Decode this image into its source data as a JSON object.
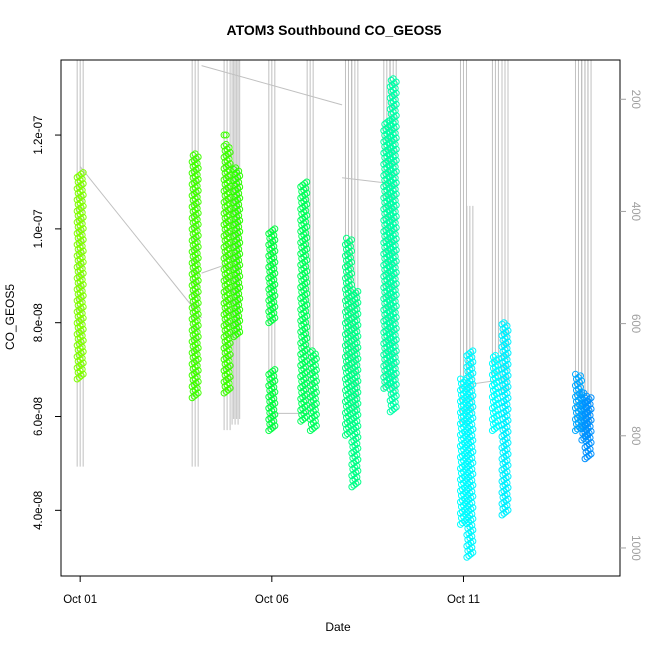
{
  "chart_data": {
    "type": "scatter",
    "title": "ATOM3 Southbound CO_GEOS5",
    "xlabel": "Date",
    "ylabel": "CO_GEOS5",
    "x_ticks": [
      {
        "date": "2017-10-01",
        "label": "Oct 01"
      },
      {
        "date": "2017-10-06",
        "label": "Oct 06"
      },
      {
        "date": "2017-10-11",
        "label": "Oct 11"
      }
    ],
    "xlim": [
      "2017-09-30T12:00",
      "2017-10-15T02:00"
    ],
    "ylim": [
      2.6e-08,
      1.36e-07
    ],
    "y_ticks": [
      {
        "value": 4e-08,
        "label": "4.0e-08"
      },
      {
        "value": 6e-08,
        "label": "6.0e-08"
      },
      {
        "value": 8e-08,
        "label": "8.0e-08"
      },
      {
        "value": 1e-07,
        "label": "1.0e-07"
      },
      {
        "value": 1.2e-07,
        "label": "1.2e-07"
      }
    ],
    "secondary_axis": {
      "side": "right",
      "reversed": true,
      "lim": [
        130,
        1050
      ],
      "color": "#a0a0a0",
      "ticks": [
        {
          "value": 200,
          "label": "200"
        },
        {
          "value": 400,
          "label": "400"
        },
        {
          "value": 600,
          "label": "600"
        },
        {
          "value": 800,
          "label": "800"
        },
        {
          "value": 1000,
          "label": "1000"
        }
      ]
    },
    "grid": false,
    "legend": "none",
    "series": [
      {
        "color": "#80ff00",
        "x": "2017-10-01T00:00",
        "segments": [
          [
            6.8e-08,
            1.12e-07
          ]
        ]
      },
      {
        "color": "#40ff00",
        "x": "2017-10-04T00:00",
        "segments": [
          [
            6.4e-08,
            1.16e-07
          ]
        ]
      },
      {
        "color": "#3cff00",
        "x": "2017-10-04T20:00",
        "segments": [
          [
            6.5e-08,
            1.18e-07
          ],
          [
            1.2e-07,
            1.2e-07
          ]
        ]
      },
      {
        "color": "#2cff00",
        "x": "2017-10-05T02:00",
        "segments": [
          [
            7.7e-08,
            1.13e-07
          ]
        ]
      },
      {
        "color": "#00ff40",
        "x": "2017-10-06T00:00",
        "segments": [
          [
            5.7e-08,
            7e-08
          ],
          [
            8e-08,
            1e-07
          ]
        ]
      },
      {
        "color": "#00ff5a",
        "x": "2017-10-06T20:00",
        "segments": [
          [
            5.9e-08,
            1.1e-07
          ]
        ]
      },
      {
        "color": "#00ff60",
        "x": "2017-10-07T02:00",
        "segments": [
          [
            5.7e-08,
            7.4e-08
          ]
        ]
      },
      {
        "color": "#00ff80",
        "x": "2017-10-08T00:00",
        "segments": [
          [
            5.6e-08,
            9.8e-08
          ]
        ]
      },
      {
        "color": "#00ff88",
        "x": "2017-10-08T04:00",
        "segments": [
          [
            4.5e-08,
            8.7e-08
          ]
        ]
      },
      {
        "color": "#00ffa0",
        "x": "2017-10-09T00:00",
        "segments": [
          [
            6.6e-08,
            1.23e-07
          ]
        ]
      },
      {
        "color": "#00ffa8",
        "x": "2017-10-09T04:00",
        "segments": [
          [
            6.1e-08,
            1.32e-07
          ]
        ]
      },
      {
        "color": "#00ffff",
        "x": "2017-10-11T00:00",
        "segments": [
          [
            3.7e-08,
            6.8e-08
          ]
        ]
      },
      {
        "color": "#00f8ff",
        "x": "2017-10-11T04:00",
        "segments": [
          [
            3e-08,
            7.4e-08
          ]
        ]
      },
      {
        "color": "#00ffff",
        "x": "2017-10-11T20:00",
        "segments": [
          [
            5.7e-08,
            7.3e-08
          ]
        ]
      },
      {
        "color": "#00f0ff",
        "x": "2017-10-12T02:00",
        "segments": [
          [
            3.9e-08,
            8e-08
          ]
        ]
      },
      {
        "color": "#00a8ff",
        "x": "2017-10-14T00:00",
        "segments": [
          [
            5.7e-08,
            6.9e-08
          ]
        ]
      },
      {
        "color": "#0098ff",
        "x": "2017-10-14T04:00",
        "segments": [
          [
            5.5e-08,
            6.5e-08
          ]
        ]
      },
      {
        "color": "#0090ff",
        "x": "2017-10-14T06:00",
        "segments": [
          [
            5.1e-08,
            6.4e-08
          ]
        ]
      }
    ],
    "pressure_profiles": {
      "color": "#c0c0c0",
      "vertical": [
        {
          "x": "2017-10-01T00:00",
          "p": [
            130,
            855
          ]
        },
        {
          "x": "2017-10-04T00:00",
          "p": [
            130,
            855
          ]
        },
        {
          "x": "2017-10-04T20:00",
          "p": [
            130,
            790
          ]
        },
        {
          "x": "2017-10-05T01:00",
          "p": [
            130,
            780
          ]
        },
        {
          "x": "2017-10-05T02:00",
          "p": [
            130,
            770
          ]
        },
        {
          "x": "2017-10-06T00:00",
          "p": [
            130,
            790
          ]
        },
        {
          "x": "2017-10-07T00:00",
          "p": [
            130,
            760
          ]
        },
        {
          "x": "2017-10-08T00:00",
          "p": [
            130,
            680
          ]
        },
        {
          "x": "2017-10-08T04:00",
          "p": [
            130,
            760
          ]
        },
        {
          "x": "2017-10-09T00:00",
          "p": [
            130,
            720
          ]
        },
        {
          "x": "2017-10-09T04:00",
          "p": [
            130,
            730
          ]
        },
        {
          "x": "2017-10-11T00:00",
          "p": [
            130,
            780
          ]
        },
        {
          "x": "2017-10-11T04:00",
          "p": [
            390,
            760
          ]
        },
        {
          "x": "2017-10-11T20:00",
          "p": [
            130,
            700
          ]
        },
        {
          "x": "2017-10-12T02:00",
          "p": [
            130,
            720
          ]
        },
        {
          "x": "2017-10-14T00:00",
          "p": [
            130,
            790
          ]
        },
        {
          "x": "2017-10-14T04:00",
          "p": [
            130,
            800
          ]
        },
        {
          "x": "2017-10-14T06:00",
          "p": [
            130,
            780
          ]
        }
      ],
      "transits": [
        {
          "x": [
            "2017-10-01T00:00",
            "2017-10-04T04:00"
          ],
          "p": [
            320,
            590
          ]
        },
        {
          "x": [
            "2017-10-04T04:00",
            "2017-10-05T00:00"
          ],
          "p": [
            510,
            490
          ]
        },
        {
          "x": [
            "2017-10-04T04:00",
            "2017-10-07T20:00"
          ],
          "p": [
            140,
            210
          ]
        },
        {
          "x": [
            "2017-10-07T20:00",
            "2017-10-09T02:00"
          ],
          "p": [
            340,
            350
          ]
        },
        {
          "x": [
            "2017-10-06T00:00",
            "2017-10-07T00:00"
          ],
          "p": [
            760,
            760
          ]
        },
        {
          "x": [
            "2017-10-11T00:00",
            "2017-10-12T00:00"
          ],
          "p": [
            710,
            700
          ]
        }
      ]
    }
  }
}
